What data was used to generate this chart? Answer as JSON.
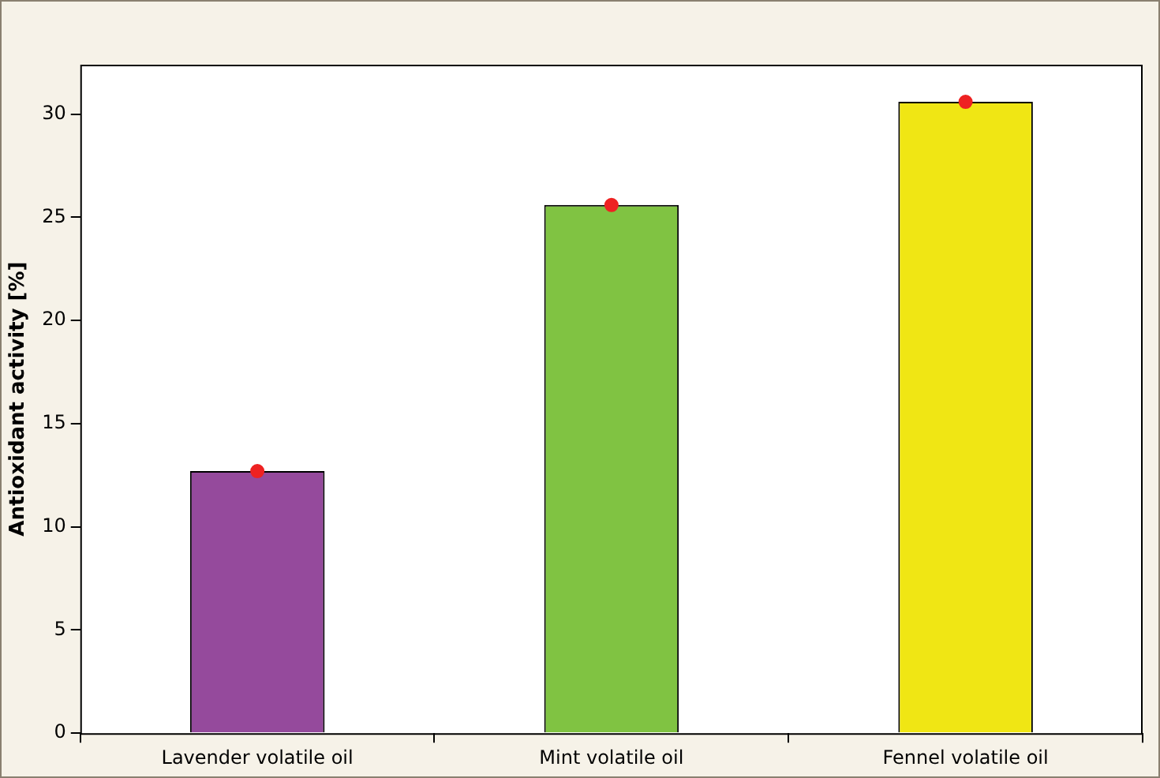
{
  "chart_data": {
    "type": "bar",
    "ylabel": "Antioxidant activity [%]",
    "categories": [
      "Lavender volatile oil",
      "Mint volatile oil",
      "Fennel volatile oil"
    ],
    "series": [
      {
        "colors": [
          "#954a9c",
          "#80c342",
          "#f0e614"
        ],
        "values": [
          12.7,
          25.6,
          30.6
        ]
      },
      {
        "type": "scatter",
        "color": "#ee2222",
        "x": [
          "Lavender volatile oil",
          "Mint volatile oil",
          "Fennel volatile oil"
        ],
        "values": [
          12.7,
          25.6,
          30.6
        ],
        "marker": "circle"
      }
    ],
    "ylim": [
      0,
      32.4
    ],
    "yticks": [
      0,
      5,
      10,
      15,
      20,
      25,
      30
    ],
    "grid": false,
    "legend": false
  }
}
